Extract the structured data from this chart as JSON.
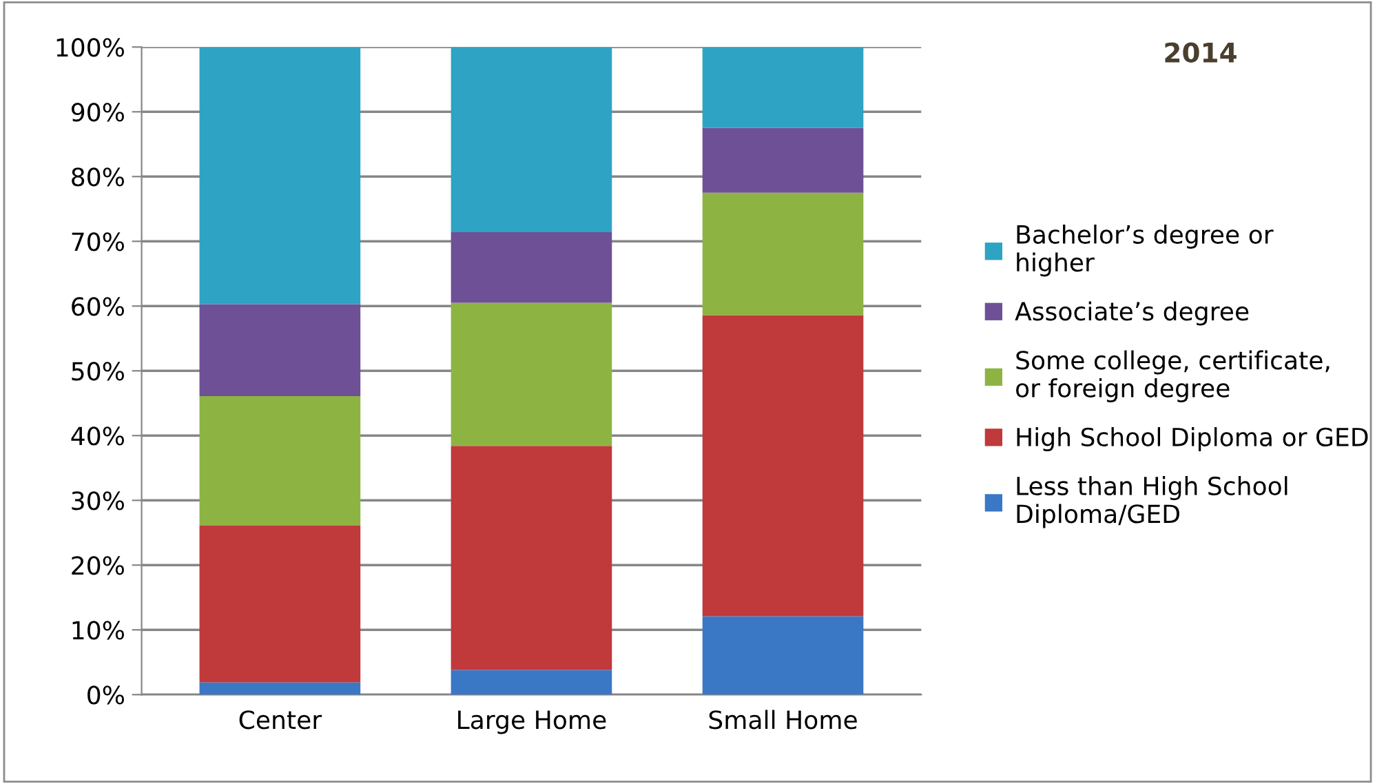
{
  "chart_data": {
    "type": "bar",
    "title": "2014",
    "stacked": true,
    "categories": [
      "Center",
      "Large Home",
      "Small Home"
    ],
    "series": [
      {
        "name": "Less than High School Diploma/GED",
        "color": "#3a78c6",
        "values": [
          1.9,
          3.8,
          12.1
        ]
      },
      {
        "name": "High School Diploma or GED",
        "color": "#c0393b",
        "values": [
          24.2,
          34.6,
          46.5
        ]
      },
      {
        "name": "Some college, certificate, or foreign degree",
        "color": "#8db443",
        "values": [
          20.0,
          22.1,
          18.9
        ]
      },
      {
        "name": "Associate’s degree",
        "color": "#6e5096",
        "values": [
          14.2,
          10.9,
          10.0
        ]
      },
      {
        "name": "Bachelor’s degree or higher",
        "color": "#2ea3c4",
        "values": [
          39.7,
          28.6,
          12.5
        ]
      }
    ],
    "ylim": [
      0,
      100
    ],
    "yticks": [
      {
        "value": 0,
        "label": "0%"
      },
      {
        "value": 10,
        "label": "10%"
      },
      {
        "value": 20,
        "label": "20%"
      },
      {
        "value": 30,
        "label": "30%"
      },
      {
        "value": 40,
        "label": "40%"
      },
      {
        "value": 50,
        "label": "50%"
      },
      {
        "value": 60,
        "label": "60%"
      },
      {
        "value": 70,
        "label": "70%"
      },
      {
        "value": 80,
        "label": "80%"
      },
      {
        "value": 90,
        "label": "90%"
      },
      {
        "value": 100,
        "label": "100%"
      }
    ],
    "grid": "y",
    "legend": "right"
  }
}
